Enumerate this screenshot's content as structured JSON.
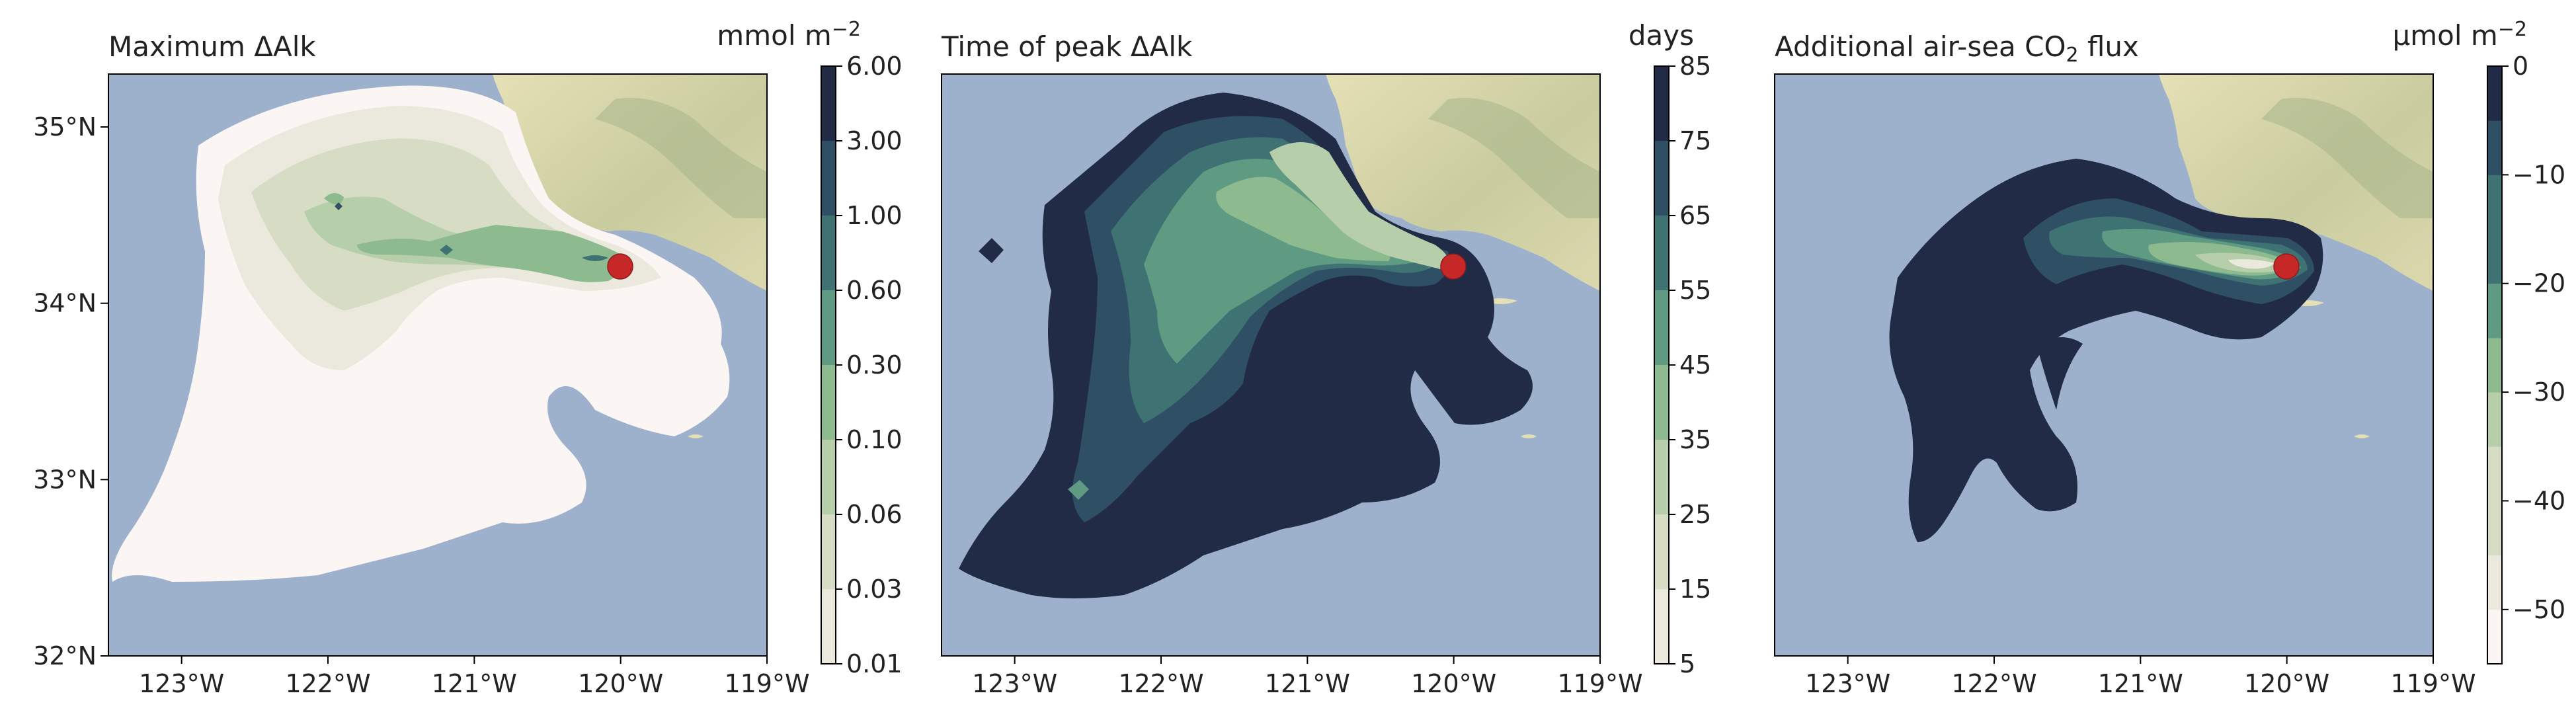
{
  "colors": {
    "ocean": "#9eb1cc",
    "land": "#e4dfb6",
    "land_dark": "#a8b48a",
    "marker": "#c62828",
    "ramp": [
      "#fbf5f4",
      "#ebe9dd",
      "#d7dcc4",
      "#b7ceaa",
      "#8dba8e",
      "#5f9a83",
      "#3f7373",
      "#2f5064",
      "#222b45"
    ]
  },
  "chart_data": [
    {
      "type": "contour-map",
      "title": "Maximum ΔAlk",
      "colorbar_label": "mmol m",
      "colorbar_label_sup": "−2",
      "colorbar_ticks": [
        "6.00",
        "3.00",
        "1.00",
        "0.60",
        "0.30",
        "0.10",
        "0.06",
        "0.03",
        "0.01"
      ],
      "xticks": [
        "123°W",
        "122°W",
        "121°W",
        "120°W",
        "119°W"
      ],
      "yticks": [
        "35°N",
        "34°N",
        "33°N",
        "32°N"
      ],
      "xlim": [
        -123.5,
        -119
      ],
      "ylim": [
        32,
        35.3
      ],
      "release_point": {
        "lon": -120.0,
        "lat": 34.23
      }
    },
    {
      "type": "contour-map",
      "title": "Time of peak ΔAlk",
      "colorbar_label": "days",
      "colorbar_ticks": [
        "85",
        "75",
        "65",
        "55",
        "45",
        "35",
        "25",
        "15",
        "5"
      ],
      "xticks": [
        "123°W",
        "122°W",
        "121°W",
        "120°W",
        "119°W"
      ],
      "xlim": [
        -123.5,
        -119
      ],
      "ylim": [
        32,
        35.3
      ],
      "release_point": {
        "lon": -120.0,
        "lat": 34.23
      }
    },
    {
      "type": "contour-map",
      "title": "Additional air-sea CO",
      "title_sub": "2",
      "title_tail": " flux",
      "colorbar_label": "μmol m",
      "colorbar_label_sup": "−2",
      "colorbar_ticks": [
        "0",
        "−10",
        "−20",
        "−30",
        "−40",
        "−50"
      ],
      "colorbar_range": [
        -55,
        0
      ],
      "xticks": [
        "123°W",
        "122°W",
        "121°W",
        "120°W",
        "119°W"
      ],
      "xlim": [
        -123.5,
        -119
      ],
      "ylim": [
        32,
        35.3
      ],
      "release_point": {
        "lon": -120.0,
        "lat": 34.23
      }
    }
  ]
}
